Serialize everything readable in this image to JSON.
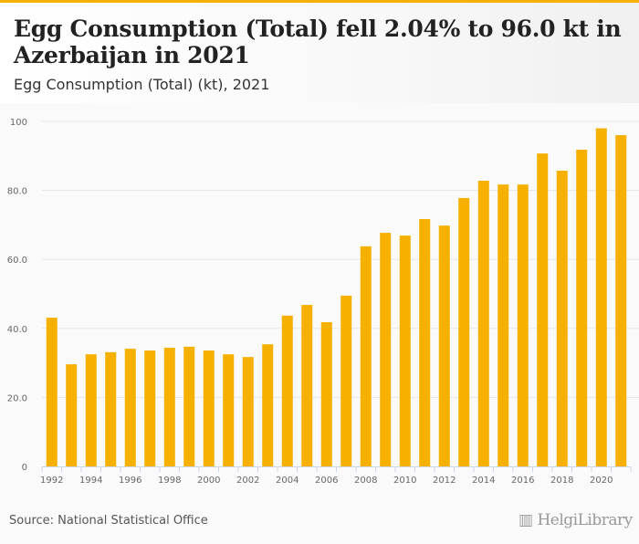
{
  "header": {
    "title": "Egg Consumption (Total) fell 2.04% to 96.0 kt in Azerbaijan in 2021",
    "subtitle": "Egg Consumption (Total) (kt), 2021"
  },
  "footer": {
    "source": "Source: National Statistical Office",
    "logo": "HelgiLibrary"
  },
  "colors": {
    "bar": "#f5b000",
    "accent": "#f5b000"
  },
  "chart_data": {
    "type": "bar",
    "title": "Egg Consumption (Total) (kt), 2021",
    "xlabel": "",
    "ylabel": "",
    "ylim": [
      0,
      100
    ],
    "yticks": [
      {
        "v": 0,
        "label": "0"
      },
      {
        "v": 20,
        "label": "20.0"
      },
      {
        "v": 40,
        "label": "40.0"
      },
      {
        "v": 60,
        "label": "60.0"
      },
      {
        "v": 80,
        "label": "80.0"
      },
      {
        "v": 100,
        "label": "100"
      }
    ],
    "categories": [
      "1992",
      "1993",
      "1994",
      "1995",
      "1996",
      "1997",
      "1998",
      "1999",
      "2000",
      "2001",
      "2002",
      "2003",
      "2004",
      "2005",
      "2006",
      "2007",
      "2008",
      "2009",
      "2010",
      "2011",
      "2012",
      "2013",
      "2014",
      "2015",
      "2016",
      "2017",
      "2018",
      "2019",
      "2020",
      "2021"
    ],
    "values": [
      43.1,
      29.6,
      32.5,
      33.1,
      34.1,
      33.6,
      34.4,
      34.7,
      33.6,
      32.5,
      31.7,
      35.4,
      43.7,
      46.8,
      41.8,
      49.5,
      63.8,
      67.7,
      66.9,
      71.7,
      69.8,
      77.8,
      82.8,
      81.7,
      81.7,
      90.7,
      85.7,
      91.8,
      98.0,
      96.0
    ],
    "grid": true,
    "legend": "none"
  }
}
